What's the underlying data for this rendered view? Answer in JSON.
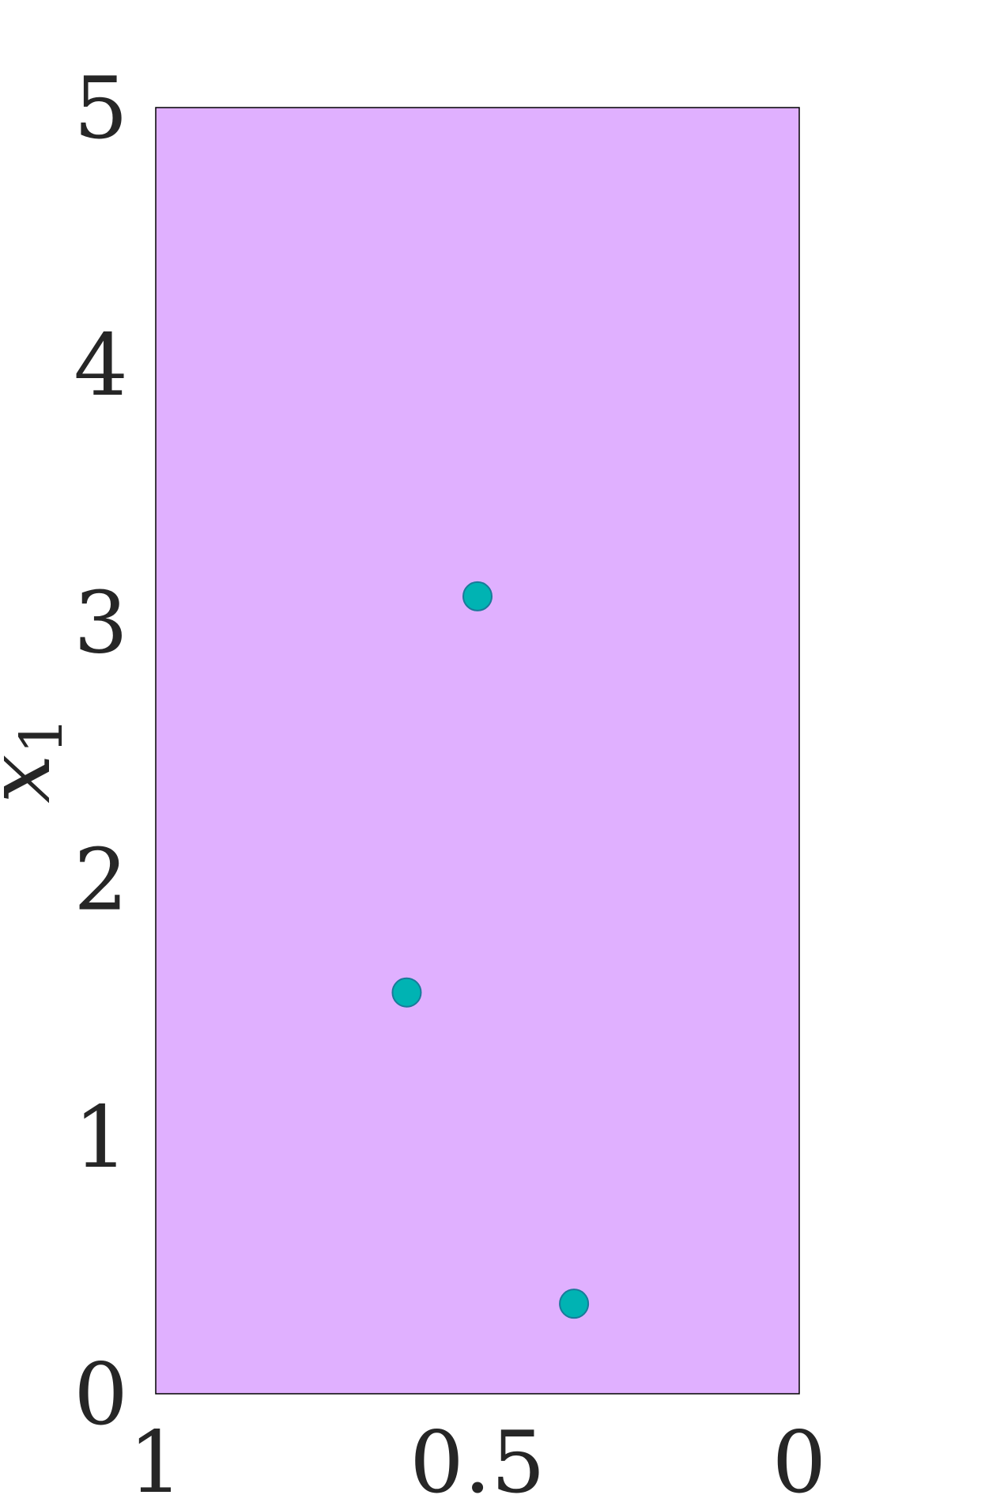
{
  "chart_data": {
    "type": "scatter",
    "title": "",
    "xlabel": "",
    "ylabel": {
      "base": "x",
      "subscript": "1"
    },
    "xlim": [
      1,
      0
    ],
    "ylim": [
      0,
      5
    ],
    "x_reversed": true,
    "xticks": [
      1,
      0.5,
      0
    ],
    "xtick_labels": [
      "1",
      "0.5",
      "0"
    ],
    "yticks": [
      0,
      1,
      2,
      3,
      4,
      5
    ],
    "ytick_labels": [
      "0",
      "1",
      "2",
      "3",
      "4",
      "5"
    ],
    "grid": false,
    "legend": "none",
    "colors": {
      "region_fill": "#e0b0ff",
      "region_edge": "#000000",
      "marker_fill": "#00b3b3",
      "marker_edge": "#1a7a9a",
      "text": "#262626"
    },
    "series": [
      {
        "x": [
          0.5,
          0.61,
          0.35
        ],
        "y": [
          3.1,
          1.56,
          0.35
        ]
      }
    ]
  }
}
